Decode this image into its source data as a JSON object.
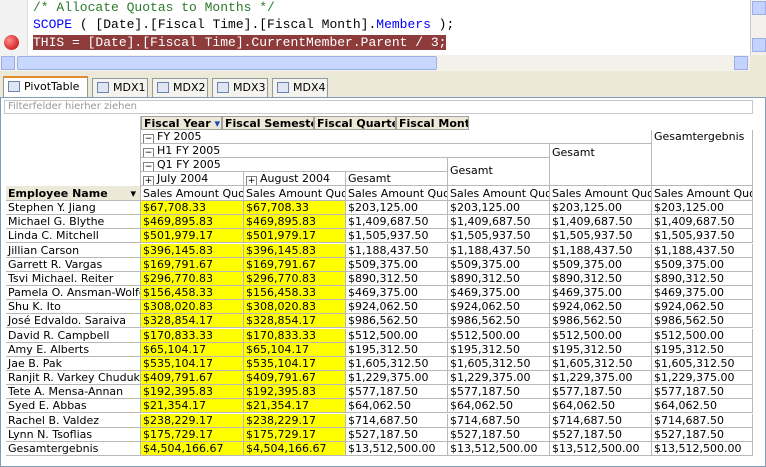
{
  "editor": {
    "lines": [
      [
        "/* Allocate Quotas to Months */"
      ],
      [
        "SCOPE",
        " ( [Date].[Fiscal Time].[Fiscal Month].",
        "Members",
        " );"
      ],
      [
        "THIS = [Date].[Fiscal Time].CurrentMember.Parent / 3;"
      ]
    ]
  },
  "tabs": [
    "PivotTable",
    "MDX1",
    "MDX2",
    "MDX3",
    "MDX4"
  ],
  "filter_hint": "Filterfelder hierher ziehen",
  "pivot": {
    "column_fields": [
      "Fiscal Year",
      "Fiscal Semester",
      "Fiscal Quarter",
      "Fiscal Month"
    ],
    "row_field": "Employee Name",
    "year": "FY 2005",
    "semester": "H1 FY 2005",
    "quarter": "Q1 FY 2005",
    "months": [
      "July 2004",
      "August 2004"
    ],
    "quarter_total": "Gesamt",
    "semester_total": "Gesamt",
    "year_total": "Gesamt",
    "grand_total": "Gesamtergebnis",
    "measures": [
      "Sales Amount Quota",
      "Sales Amount Quota",
      "Sales Amount Quota",
      "Sales Amount Quota",
      "Sales Amount Quota",
      "Sales Amount Quota"
    ],
    "rows": [
      [
        "Stephen Y. Jiang",
        "$67,708.33",
        "$67,708.33",
        "$203,125.00",
        "$203,125.00",
        "$203,125.00",
        "$203,125.00"
      ],
      [
        "Michael G. Blythe",
        "$469,895.83",
        "$469,895.83",
        "$1,409,687.50",
        "$1,409,687.50",
        "$1,409,687.50",
        "$1,409,687.50"
      ],
      [
        "Linda C. Mitchell",
        "$501,979.17",
        "$501,979.17",
        "$1,505,937.50",
        "$1,505,937.50",
        "$1,505,937.50",
        "$1,505,937.50"
      ],
      [
        "Jillian Carson",
        "$396,145.83",
        "$396,145.83",
        "$1,188,437.50",
        "$1,188,437.50",
        "$1,188,437.50",
        "$1,188,437.50"
      ],
      [
        "Garrett R. Vargas",
        "$169,791.67",
        "$169,791.67",
        "$509,375.00",
        "$509,375.00",
        "$509,375.00",
        "$509,375.00"
      ],
      [
        "Tsvi Michael. Reiter",
        "$296,770.83",
        "$296,770.83",
        "$890,312.50",
        "$890,312.50",
        "$890,312.50",
        "$890,312.50"
      ],
      [
        "Pamela O. Ansman-Wolfe",
        "$156,458.33",
        "$156,458.33",
        "$469,375.00",
        "$469,375.00",
        "$469,375.00",
        "$469,375.00"
      ],
      [
        "Shu K. Ito",
        "$308,020.83",
        "$308,020.83",
        "$924,062.50",
        "$924,062.50",
        "$924,062.50",
        "$924,062.50"
      ],
      [
        "José Edvaldo. Saraiva",
        "$328,854.17",
        "$328,854.17",
        "$986,562.50",
        "$986,562.50",
        "$986,562.50",
        "$986,562.50"
      ],
      [
        "David R. Campbell",
        "$170,833.33",
        "$170,833.33",
        "$512,500.00",
        "$512,500.00",
        "$512,500.00",
        "$512,500.00"
      ],
      [
        "Amy E. Alberts",
        "$65,104.17",
        "$65,104.17",
        "$195,312.50",
        "$195,312.50",
        "$195,312.50",
        "$195,312.50"
      ],
      [
        "Jae B. Pak",
        "$535,104.17",
        "$535,104.17",
        "$1,605,312.50",
        "$1,605,312.50",
        "$1,605,312.50",
        "$1,605,312.50"
      ],
      [
        "Ranjit R. Varkey Chudukatil",
        "$409,791.67",
        "$409,791.67",
        "$1,229,375.00",
        "$1,229,375.00",
        "$1,229,375.00",
        "$1,229,375.00"
      ],
      [
        "Tete A. Mensa-Annan",
        "$192,395.83",
        "$192,395.83",
        "$577,187.50",
        "$577,187.50",
        "$577,187.50",
        "$577,187.50"
      ],
      [
        "Syed E. Abbas",
        "$21,354.17",
        "$21,354.17",
        "$64,062.50",
        "$64,062.50",
        "$64,062.50",
        "$64,062.50"
      ],
      [
        "Rachel B. Valdez",
        "$238,229.17",
        "$238,229.17",
        "$714,687.50",
        "$714,687.50",
        "$714,687.50",
        "$714,687.50"
      ],
      [
        "Lynn N. Tsoflias",
        "$175,729.17",
        "$175,729.17",
        "$527,187.50",
        "$527,187.50",
        "$527,187.50",
        "$527,187.50"
      ],
      [
        "Gesamtergebnis",
        "$4,504,166.67",
        "$4,504,166.67",
        "$13,512,500.00",
        "$13,512,500.00",
        "$13,512,500.00",
        "$13,512,500.00"
      ]
    ]
  }
}
